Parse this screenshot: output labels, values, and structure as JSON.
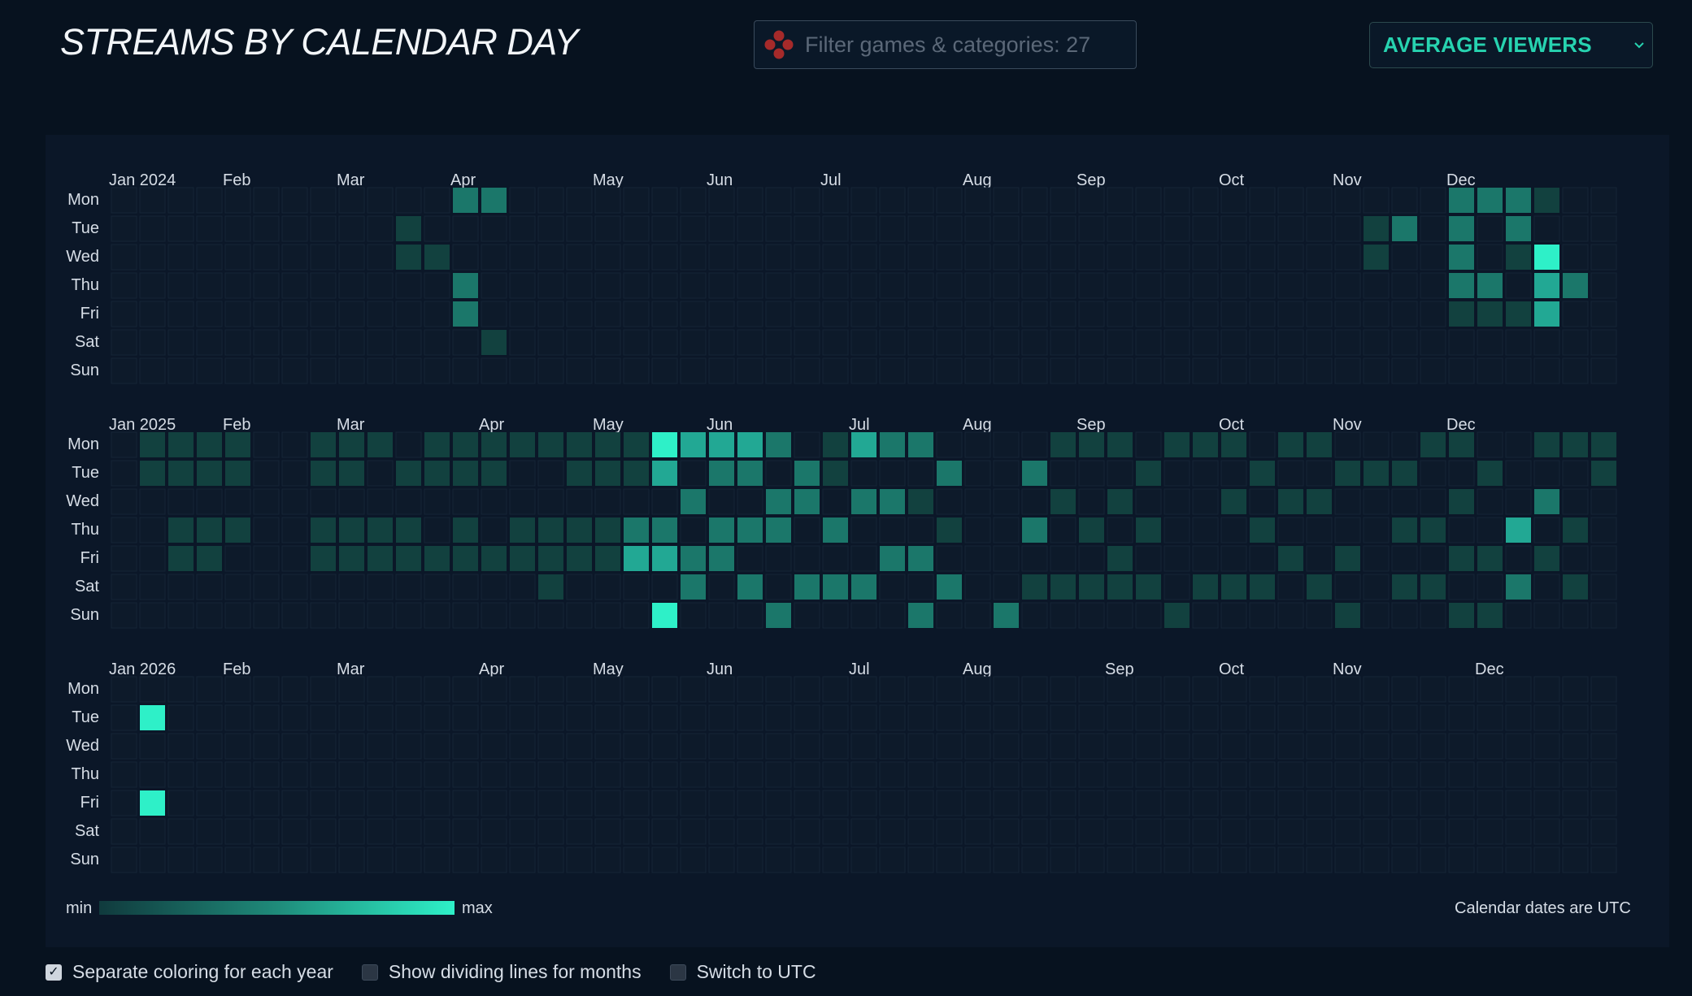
{
  "header": {
    "title": "STREAMS BY CALENDAR DAY",
    "filter_placeholder": "Filter games & categories: 27",
    "filter_icon": "gamepad-icon",
    "metric_label": "AVERAGE VIEWERS",
    "metric_icon": "chevron-down-icon"
  },
  "chart_data": {
    "type": "heatmap",
    "metric": "Average viewers",
    "weekdays": [
      "Mon",
      "Tue",
      "Wed",
      "Thu",
      "Fri",
      "Sat",
      "Sun"
    ],
    "scale_note": "intensity 1 (min) to 4 (max), separate coloring per year",
    "years": [
      {
        "month_labels": [
          {
            "label": "Jan 2024",
            "week": 0
          },
          {
            "label": "Feb",
            "week": 4
          },
          {
            "label": "Mar",
            "week": 8
          },
          {
            "label": "Apr",
            "week": 12
          },
          {
            "label": "May",
            "week": 17
          },
          {
            "label": "Jun",
            "week": 21
          },
          {
            "label": "Jul",
            "week": 25
          },
          {
            "label": "Aug",
            "week": 30
          },
          {
            "label": "Sep",
            "week": 34
          },
          {
            "label": "Oct",
            "week": 39
          },
          {
            "label": "Nov",
            "week": 43
          },
          {
            "label": "Dec",
            "week": 47
          }
        ],
        "weeks": 53,
        "cells": [
          [
            0,
            12,
            2
          ],
          [
            0,
            13,
            2
          ],
          [
            1,
            10,
            1
          ],
          [
            2,
            10,
            1
          ],
          [
            2,
            11,
            1
          ],
          [
            3,
            12,
            2
          ],
          [
            4,
            12,
            2
          ],
          [
            5,
            13,
            1
          ],
          [
            1,
            44,
            1
          ],
          [
            1,
            45,
            2
          ],
          [
            2,
            44,
            1
          ],
          [
            0,
            47,
            2
          ],
          [
            0,
            48,
            2
          ],
          [
            0,
            49,
            2
          ],
          [
            0,
            50,
            1
          ],
          [
            1,
            47,
            2
          ],
          [
            1,
            49,
            2
          ],
          [
            2,
            47,
            2
          ],
          [
            2,
            49,
            1
          ],
          [
            2,
            50,
            4
          ],
          [
            3,
            47,
            2
          ],
          [
            3,
            48,
            2
          ],
          [
            3,
            50,
            3
          ],
          [
            3,
            51,
            2
          ],
          [
            4,
            47,
            1
          ],
          [
            4,
            48,
            1
          ],
          [
            4,
            49,
            1
          ],
          [
            4,
            50,
            3
          ]
        ]
      },
      {
        "month_labels": [
          {
            "label": "Jan 2025",
            "week": 0
          },
          {
            "label": "Feb",
            "week": 4
          },
          {
            "label": "Mar",
            "week": 8
          },
          {
            "label": "Apr",
            "week": 13
          },
          {
            "label": "May",
            "week": 17
          },
          {
            "label": "Jun",
            "week": 21
          },
          {
            "label": "Jul",
            "week": 26
          },
          {
            "label": "Aug",
            "week": 30
          },
          {
            "label": "Sep",
            "week": 34
          },
          {
            "label": "Oct",
            "week": 39
          },
          {
            "label": "Nov",
            "week": 43
          },
          {
            "label": "Dec",
            "week": 47
          }
        ],
        "weeks": 53,
        "cells": [
          [
            0,
            1,
            1
          ],
          [
            0,
            2,
            1
          ],
          [
            0,
            3,
            1
          ],
          [
            0,
            4,
            1
          ],
          [
            0,
            7,
            1
          ],
          [
            0,
            8,
            1
          ],
          [
            0,
            9,
            1
          ],
          [
            0,
            11,
            1
          ],
          [
            0,
            12,
            1
          ],
          [
            0,
            13,
            1
          ],
          [
            0,
            14,
            1
          ],
          [
            0,
            15,
            1
          ],
          [
            0,
            16,
            1
          ],
          [
            0,
            17,
            1
          ],
          [
            0,
            18,
            1
          ],
          [
            0,
            19,
            4
          ],
          [
            0,
            20,
            3
          ],
          [
            0,
            21,
            3
          ],
          [
            0,
            22,
            3
          ],
          [
            0,
            23,
            2
          ],
          [
            0,
            25,
            1
          ],
          [
            0,
            26,
            3
          ],
          [
            0,
            27,
            2
          ],
          [
            0,
            28,
            2
          ],
          [
            0,
            33,
            1
          ],
          [
            0,
            34,
            1
          ],
          [
            0,
            35,
            1
          ],
          [
            0,
            37,
            1
          ],
          [
            0,
            38,
            1
          ],
          [
            0,
            39,
            1
          ],
          [
            0,
            41,
            1
          ],
          [
            0,
            42,
            1
          ],
          [
            0,
            46,
            1
          ],
          [
            0,
            47,
            1
          ],
          [
            0,
            50,
            1
          ],
          [
            0,
            51,
            1
          ],
          [
            0,
            52,
            1
          ],
          [
            1,
            1,
            1
          ],
          [
            1,
            2,
            1
          ],
          [
            1,
            3,
            1
          ],
          [
            1,
            4,
            1
          ],
          [
            1,
            7,
            1
          ],
          [
            1,
            8,
            1
          ],
          [
            1,
            10,
            1
          ],
          [
            1,
            11,
            1
          ],
          [
            1,
            12,
            1
          ],
          [
            1,
            13,
            1
          ],
          [
            1,
            16,
            1
          ],
          [
            1,
            17,
            1
          ],
          [
            1,
            18,
            1
          ],
          [
            1,
            19,
            3
          ],
          [
            1,
            21,
            2
          ],
          [
            1,
            22,
            2
          ],
          [
            1,
            24,
            2
          ],
          [
            1,
            25,
            1
          ],
          [
            1,
            29,
            2
          ],
          [
            1,
            32,
            2
          ],
          [
            1,
            36,
            1
          ],
          [
            1,
            40,
            1
          ],
          [
            1,
            43,
            1
          ],
          [
            1,
            44,
            1
          ],
          [
            1,
            45,
            1
          ],
          [
            1,
            48,
            1
          ],
          [
            1,
            52,
            1
          ],
          [
            2,
            20,
            2
          ],
          [
            2,
            23,
            2
          ],
          [
            2,
            24,
            2
          ],
          [
            2,
            26,
            2
          ],
          [
            2,
            27,
            2
          ],
          [
            2,
            28,
            1
          ],
          [
            2,
            33,
            1
          ],
          [
            2,
            35,
            1
          ],
          [
            2,
            39,
            1
          ],
          [
            2,
            41,
            1
          ],
          [
            2,
            42,
            1
          ],
          [
            2,
            47,
            1
          ],
          [
            2,
            50,
            2
          ],
          [
            3,
            2,
            1
          ],
          [
            3,
            3,
            1
          ],
          [
            3,
            4,
            1
          ],
          [
            3,
            7,
            1
          ],
          [
            3,
            8,
            1
          ],
          [
            3,
            9,
            1
          ],
          [
            3,
            10,
            1
          ],
          [
            3,
            12,
            1
          ],
          [
            3,
            14,
            1
          ],
          [
            3,
            15,
            1
          ],
          [
            3,
            16,
            1
          ],
          [
            3,
            17,
            1
          ],
          [
            3,
            18,
            2
          ],
          [
            3,
            19,
            2
          ],
          [
            3,
            21,
            2
          ],
          [
            3,
            22,
            2
          ],
          [
            3,
            23,
            2
          ],
          [
            3,
            25,
            2
          ],
          [
            3,
            29,
            1
          ],
          [
            3,
            32,
            2
          ],
          [
            3,
            34,
            1
          ],
          [
            3,
            36,
            1
          ],
          [
            3,
            40,
            1
          ],
          [
            3,
            45,
            1
          ],
          [
            3,
            46,
            1
          ],
          [
            3,
            49,
            3
          ],
          [
            3,
            51,
            1
          ],
          [
            4,
            2,
            1
          ],
          [
            4,
            3,
            1
          ],
          [
            4,
            7,
            1
          ],
          [
            4,
            8,
            1
          ],
          [
            4,
            9,
            1
          ],
          [
            4,
            10,
            1
          ],
          [
            4,
            11,
            1
          ],
          [
            4,
            12,
            1
          ],
          [
            4,
            13,
            1
          ],
          [
            4,
            14,
            1
          ],
          [
            4,
            15,
            1
          ],
          [
            4,
            16,
            1
          ],
          [
            4,
            17,
            1
          ],
          [
            4,
            18,
            3
          ],
          [
            4,
            19,
            3
          ],
          [
            4,
            20,
            2
          ],
          [
            4,
            21,
            2
          ],
          [
            4,
            27,
            2
          ],
          [
            4,
            28,
            2
          ],
          [
            4,
            35,
            1
          ],
          [
            4,
            41,
            1
          ],
          [
            4,
            43,
            1
          ],
          [
            4,
            47,
            1
          ],
          [
            4,
            48,
            1
          ],
          [
            4,
            50,
            1
          ],
          [
            5,
            15,
            1
          ],
          [
            5,
            20,
            2
          ],
          [
            5,
            22,
            2
          ],
          [
            5,
            24,
            2
          ],
          [
            5,
            25,
            2
          ],
          [
            5,
            26,
            2
          ],
          [
            5,
            29,
            2
          ],
          [
            5,
            32,
            1
          ],
          [
            5,
            33,
            1
          ],
          [
            5,
            34,
            1
          ],
          [
            5,
            35,
            1
          ],
          [
            5,
            36,
            1
          ],
          [
            5,
            38,
            1
          ],
          [
            5,
            39,
            1
          ],
          [
            5,
            40,
            1
          ],
          [
            5,
            42,
            1
          ],
          [
            5,
            45,
            1
          ],
          [
            5,
            46,
            1
          ],
          [
            5,
            49,
            2
          ],
          [
            5,
            51,
            1
          ],
          [
            6,
            19,
            4
          ],
          [
            6,
            23,
            2
          ],
          [
            6,
            28,
            2
          ],
          [
            6,
            31,
            2
          ],
          [
            6,
            37,
            1
          ],
          [
            6,
            43,
            1
          ],
          [
            6,
            47,
            1
          ],
          [
            6,
            48,
            1
          ]
        ]
      },
      {
        "month_labels": [
          {
            "label": "Jan 2026",
            "week": 0
          },
          {
            "label": "Feb",
            "week": 4
          },
          {
            "label": "Mar",
            "week": 8
          },
          {
            "label": "Apr",
            "week": 13
          },
          {
            "label": "May",
            "week": 17
          },
          {
            "label": "Jun",
            "week": 21
          },
          {
            "label": "Jul",
            "week": 26
          },
          {
            "label": "Aug",
            "week": 30
          },
          {
            "label": "Sep",
            "week": 35
          },
          {
            "label": "Oct",
            "week": 39
          },
          {
            "label": "Nov",
            "week": 43
          },
          {
            "label": "Dec",
            "week": 48
          }
        ],
        "weeks": 53,
        "cells": [
          [
            1,
            1,
            4
          ],
          [
            4,
            1,
            4
          ]
        ]
      }
    ],
    "legend": {
      "min_label": "min",
      "max_label": "max"
    },
    "note": "Calendar dates are UTC"
  },
  "options": [
    {
      "label": "Separate coloring for each year",
      "checked": true
    },
    {
      "label": "Show dividing lines for months",
      "checked": false
    },
    {
      "label": "Switch to UTC",
      "checked": false
    }
  ],
  "colors": {
    "background": "#07121f",
    "panel": "#0b1728",
    "empty_cell": "#0d1a2a",
    "empty_cell_border": "#152436",
    "accent": "#27d3b0",
    "levels": [
      "#0d1a2a",
      "#12413f",
      "#1b776a",
      "#22a894",
      "#2ef0c8"
    ]
  }
}
